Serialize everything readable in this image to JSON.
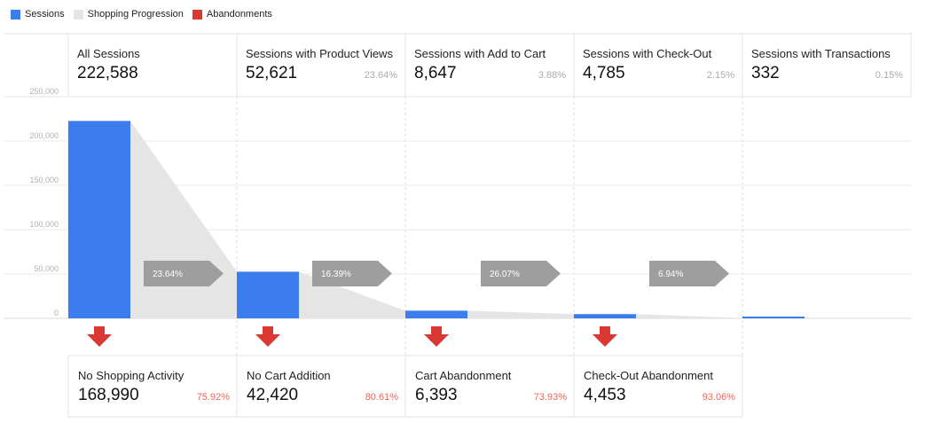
{
  "chart_data": {
    "type": "bar",
    "legend": [
      {
        "name": "Sessions",
        "color": "#3b7ded"
      },
      {
        "name": "Shopping Progression",
        "color": "#e5e5e5"
      },
      {
        "name": "Abandonments",
        "color": "#d93932"
      }
    ],
    "legend_position": "top-left",
    "y_ticks": [
      "250,000",
      "200,000",
      "150,000",
      "100,000",
      "50,000",
      "0"
    ],
    "ylim": [
      0,
      250000
    ],
    "grid": true,
    "stages": [
      {
        "label": "All Sessions",
        "value_text": "222,588",
        "value": 222588,
        "pct": ""
      },
      {
        "label": "Sessions with Product Views",
        "value_text": "52,621",
        "value": 52621,
        "pct": "23.64%"
      },
      {
        "label": "Sessions with Add to Cart",
        "value_text": "8,647",
        "value": 8647,
        "pct": "3.88%"
      },
      {
        "label": "Sessions with Check-Out",
        "value_text": "4,785",
        "value": 4785,
        "pct": "2.15%"
      },
      {
        "label": "Sessions with Transactions",
        "value_text": "332",
        "value": 332,
        "pct": "0.15%"
      }
    ],
    "conversions": [
      "23.64%",
      "16.39%",
      "26.07%",
      "6.94%"
    ],
    "abandonments": [
      {
        "label": "No Shopping Activity",
        "value_text": "168,990",
        "value": 168990,
        "pct": "75.92%"
      },
      {
        "label": "No Cart Addition",
        "value_text": "42,420",
        "value": 42420,
        "pct": "80.61%"
      },
      {
        "label": "Cart Abandonment",
        "value_text": "6,393",
        "value": 6393,
        "pct": "73.93%"
      },
      {
        "label": "Check-Out Abandonment",
        "value_text": "4,453",
        "value": 4453,
        "pct": "93.06%"
      }
    ]
  }
}
